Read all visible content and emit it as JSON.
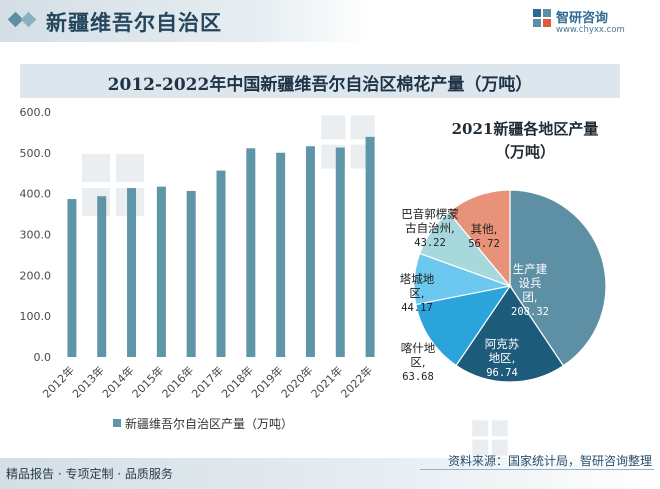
{
  "header": {
    "title": "新疆维吾尔自治区",
    "brand_name": "智研咨询",
    "brand_url": "www.chyxx.com"
  },
  "footer": {
    "slogan": "精品报告 · 专项定制 · 品质服务",
    "source": "资料来源：国家统计局，智研咨询整理"
  },
  "colors": {
    "bar": "#5f95a8",
    "accent": "#2e6a93",
    "pie": [
      "#5d8fa5",
      "#1d5b7b",
      "#2aa4da",
      "#6cc8ef",
      "#a7d8dc",
      "#e8927a"
    ]
  },
  "chart_data": [
    {
      "type": "bar",
      "title": "2012-2022年中国新疆维吾尔自治区棉花产量（万吨）",
      "categories": [
        "2012年",
        "2013年",
        "2014年",
        "2015年",
        "2016年",
        "2017年",
        "2018年",
        "2019年",
        "2020年",
        "2021年",
        "2022年"
      ],
      "series": [
        {
          "name": "新疆维吾尔自治区产量（万吨）",
          "values": [
            386.8,
            393.7,
            413.7,
            417.2,
            406.7,
            456.6,
            511.1,
            500.2,
            516.1,
            512.9,
            539.1
          ]
        }
      ],
      "yticks": [
        "0.0",
        "100.0",
        "200.0",
        "300.0",
        "400.0",
        "500.0",
        "600.0"
      ],
      "ylim": [
        0,
        600
      ],
      "grid": false,
      "legend": "bottom"
    },
    {
      "type": "pie",
      "title_lines": [
        "2021新疆各地区产量",
        "（万吨）"
      ],
      "slices": [
        {
          "label_lines": [
            "生产建",
            "设兵",
            "团,"
          ],
          "value": 208.32,
          "value_text": "208.32"
        },
        {
          "label_lines": [
            "阿克苏",
            "地区,"
          ],
          "value": 96.74,
          "value_text": "96.74"
        },
        {
          "label_lines": [
            "喀什地",
            "区,"
          ],
          "value": 63.68,
          "value_text": "63.68"
        },
        {
          "label_lines": [
            "塔城地",
            "区,"
          ],
          "value": 44.17,
          "value_text": "44.17"
        },
        {
          "label_lines": [
            "巴音郭楞蒙",
            "古自治州,"
          ],
          "value": 43.22,
          "value_text": "43.22"
        },
        {
          "label_lines": [
            "其他,"
          ],
          "value": 56.72,
          "value_text": "56.72"
        }
      ]
    }
  ]
}
